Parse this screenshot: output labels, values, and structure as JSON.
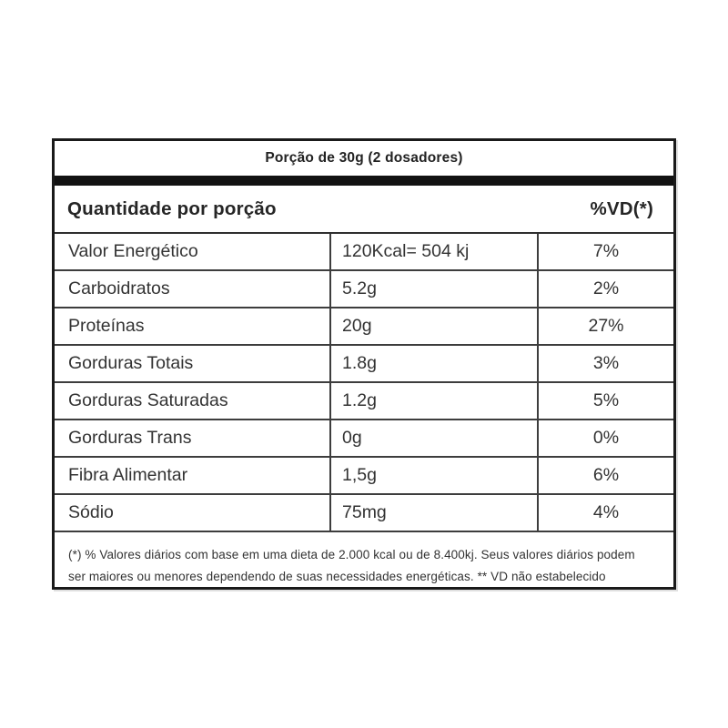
{
  "nutrition_label": {
    "portion_header": "Porção de 30g (2 dosadores)",
    "header": {
      "quantity_label": "Quantidade por porção",
      "dv_label": "%VD(*)"
    },
    "rows": [
      {
        "name": "Valor Energético",
        "amount": "120Kcal= 504 kj",
        "dv": "7%"
      },
      {
        "name": "Carboidratos",
        "amount": "5.2g",
        "dv": "2%"
      },
      {
        "name": "Proteínas",
        "amount": "20g",
        "dv": "27%"
      },
      {
        "name": "Gorduras Totais",
        "amount": "1.8g",
        "dv": "3%"
      },
      {
        "name": "Gorduras Saturadas",
        "amount": "1.2g",
        "dv": "5%"
      },
      {
        "name": "Gorduras Trans",
        "amount": "0g",
        "dv": "0%"
      },
      {
        "name": "Fibra Alimentar",
        "amount": "1,5g",
        "dv": "6%"
      },
      {
        "name": "Sódio",
        "amount": "75mg",
        "dv": "4%"
      }
    ],
    "footnote": "(*) % Valores diários com base em uma dieta de 2.000 kcal ou de 8.400kj. Seus valores diários podem ser maiores ou menores dependendo de suas necessidades energéticas. ** VD não estabelecido",
    "colors": {
      "outer_border": "#1a1a1a",
      "inner_lines": "#3d3d3d",
      "text": "#333333",
      "separator_bar": "#121212",
      "background": "#ffffff"
    }
  }
}
